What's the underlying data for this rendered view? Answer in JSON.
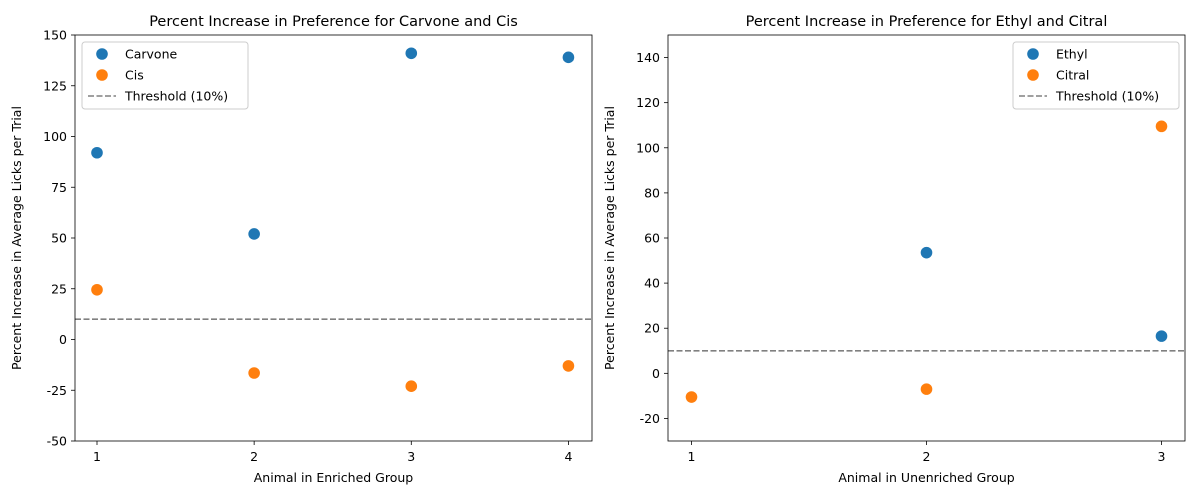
{
  "chart_data": [
    {
      "type": "scatter",
      "title": "Percent Increase in Preference for Carvone and Cis",
      "xlabel": "Animal in Enriched Group",
      "ylabel": "Percent Increase in Average Licks per Trial",
      "x": [
        1,
        2,
        3,
        4
      ],
      "xticks": [
        "1",
        "2",
        "3",
        "4"
      ],
      "xlim": [
        0.86,
        4.15
      ],
      "ylim": [
        -50,
        150
      ],
      "yticks": [
        -50,
        -25,
        0,
        25,
        50,
        75,
        100,
        125,
        150
      ],
      "series": [
        {
          "name": "Carvone",
          "color": "#1f77b4",
          "values": [
            92,
            52,
            141,
            139
          ]
        },
        {
          "name": "Cis",
          "color": "#ff7f0e",
          "values": [
            24.5,
            -16.5,
            -23,
            -13
          ]
        }
      ],
      "threshold": {
        "label": "Threshold (10%)",
        "value": 10,
        "color": "#808080"
      },
      "legend": "top-left",
      "grid": false
    },
    {
      "type": "scatter",
      "title": "Percent Increase in Preference for Ethyl and Citral",
      "xlabel": "Animal in Unenriched Group",
      "ylabel": "Percent Increase in Average Licks per Trial",
      "x": [
        1,
        2,
        3
      ],
      "xticks": [
        "1",
        "2",
        "3"
      ],
      "xlim": [
        0.9,
        3.1
      ],
      "ylim": [
        -30,
        150
      ],
      "yticks": [
        -20,
        0,
        20,
        40,
        60,
        80,
        100,
        120,
        140
      ],
      "series": [
        {
          "name": "Ethyl",
          "color": "#1f77b4",
          "values": [
            null,
            53.5,
            16.5
          ]
        },
        {
          "name": "Citral",
          "color": "#ff7f0e",
          "values": [
            -10.5,
            -7,
            109.5
          ]
        }
      ],
      "threshold": {
        "label": "Threshold (10%)",
        "value": 10,
        "color": "#808080"
      },
      "legend": "top-right",
      "grid": false
    }
  ]
}
